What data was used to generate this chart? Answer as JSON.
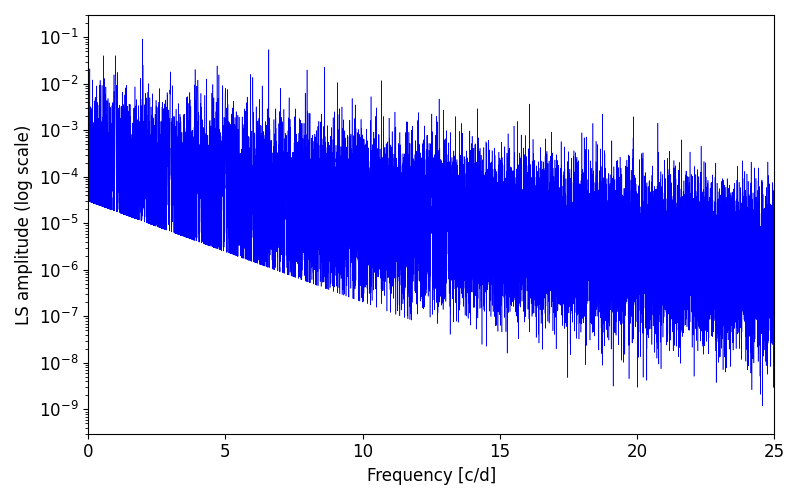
{
  "xlabel": "Frequency [c/d]",
  "ylabel": "LS amplitude (log scale)",
  "xlim": [
    0,
    25
  ],
  "ylim": [
    3e-10,
    0.3
  ],
  "line_color": "#0000ff",
  "line_width": 0.4,
  "figsize": [
    8.0,
    5.0
  ],
  "dpi": 100,
  "n_points": 25000,
  "freq_max": 25.0,
  "seed": 77,
  "background_color": "#ffffff",
  "tick_label_size": 12,
  "axis_label_size": 12
}
